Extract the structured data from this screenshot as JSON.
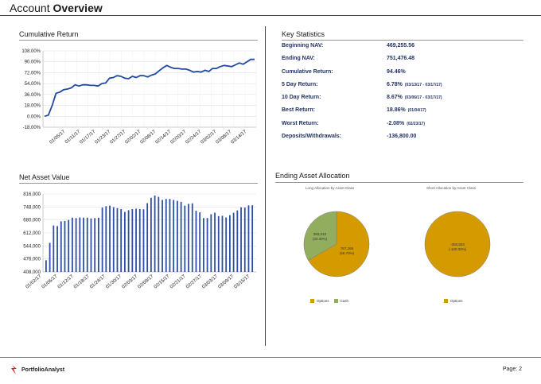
{
  "header": {
    "title_prefix": "Account ",
    "title_bold": "Overview"
  },
  "sections": {
    "cumulative_return": "Cumulative Return",
    "key_statistics": "Key Statistics",
    "net_asset_value": "Net Asset Value",
    "ending_asset_allocation": "Ending Asset Allocation"
  },
  "key_statistics": [
    {
      "label": "Beginning NAV:",
      "value": "469,255.56",
      "date": ""
    },
    {
      "label": "Ending NAV:",
      "value": "751,476.48",
      "date": ""
    },
    {
      "label": "Cumulative Return:",
      "value": "94.46%",
      "date": ""
    },
    {
      "label": "5 Day Return:",
      "value": "6.78%",
      "date": "(03/13/17 - 03/17/17)"
    },
    {
      "label": "10 Day Return:",
      "value": "8.67%",
      "date": "(03/06/17 - 03/17/17)"
    },
    {
      "label": "Best Return:",
      "value": "18.86%",
      "date": "(01/04/17)"
    },
    {
      "label": "Worst Return:",
      "value": "-2.08%",
      "date": "(02/23/17)"
    },
    {
      "label": "Deposits/Withdrawals:",
      "value": "-136,800.00",
      "date": ""
    }
  ],
  "allocation": {
    "long_title": "Long Allocation by Asset Class",
    "short_title": "Short Allocation by Asset Class",
    "long_labels": {
      "cash_value": "383,010",
      "cash_pct": "(33.30%)",
      "options_value": "767,266",
      "options_pct": "(66.70%)"
    },
    "short_labels": {
      "options_value": "-350,823",
      "options_pct": "(-100.00%)"
    },
    "legend_options": "Options",
    "legend_cash": "Cash"
  },
  "footer": {
    "brand": "PortfolioAnalyst",
    "page": "Page: 2"
  },
  "colors": {
    "line": "#1f4aa0",
    "bar": "#2c4ea3",
    "options": "#d49a00",
    "cash": "#93ad5e",
    "stat_text": "#1f2f5f"
  },
  "chart_data": [
    {
      "type": "line",
      "title": "Cumulative Return",
      "ylim": [
        -18,
        108
      ],
      "yticks": [
        "108.00%",
        "90.00%",
        "72.00%",
        "54.00%",
        "36.00%",
        "18.00%",
        "0.00%",
        "-18.00%"
      ],
      "ytick_values": [
        108,
        90,
        72,
        54,
        36,
        18,
        0,
        -18
      ],
      "xtick_labels": [
        "01/05/17",
        "01/11/17",
        "01/17/17",
        "01/23/17",
        "01/27/17",
        "02/02/17",
        "02/08/17",
        "02/14/17",
        "02/20/17",
        "02/24/17",
        "03/02/17",
        "03/08/17",
        "03/14/17"
      ],
      "values": [
        0,
        2,
        18,
        38,
        40,
        44,
        45,
        47,
        52,
        50,
        52,
        52,
        51,
        51,
        50,
        54,
        55,
        63,
        64,
        67,
        66,
        63,
        62,
        66,
        64,
        67,
        67,
        65,
        68,
        70,
        75,
        80,
        84,
        81,
        79,
        79,
        78,
        78,
        76,
        73,
        74,
        73,
        76,
        74,
        79,
        79,
        82,
        84,
        83,
        82,
        85,
        88,
        86,
        90,
        94,
        94
      ],
      "grid": true
    },
    {
      "type": "bar",
      "title": "Net Asset Value",
      "ylim": [
        408000,
        816000
      ],
      "yticks": [
        "816,000",
        "748,000",
        "680,000",
        "612,000",
        "544,000",
        "476,000",
        "408,000"
      ],
      "ytick_values": [
        816000,
        748000,
        680000,
        612000,
        544000,
        476000,
        408000
      ],
      "xtick_labels": [
        "01/02/17",
        "01/06/17",
        "01/12/17",
        "01/18/17",
        "01/24/17",
        "01/30/17",
        "02/03/17",
        "02/09/17",
        "02/15/17",
        "02/21/17",
        "02/27/17",
        "03/03/17",
        "03/09/17",
        "03/15/17"
      ],
      "values": [
        469000,
        560000,
        651000,
        648000,
        673000,
        675000,
        680000,
        692000,
        690000,
        693000,
        692000,
        692000,
        688000,
        690000,
        692000,
        745000,
        752000,
        755000,
        747000,
        742000,
        737000,
        722000,
        731000,
        737000,
        739000,
        737000,
        736000,
        768000,
        796000,
        808000,
        801000,
        785000,
        790000,
        790000,
        785000,
        780000,
        775000,
        755000,
        764000,
        767000,
        728000,
        720000,
        690000,
        690000,
        710000,
        718000,
        700000,
        702000,
        693000,
        705000,
        718000,
        730000,
        746000,
        745000,
        756000,
        757000
      ],
      "grid": true
    },
    {
      "type": "pie",
      "title": "Long Allocation by Asset Class",
      "labels": [
        "Options",
        "Cash"
      ],
      "values": [
        767266,
        383010
      ],
      "percent": [
        66.7,
        33.3
      ]
    },
    {
      "type": "pie",
      "title": "Short Allocation by Asset Class",
      "labels": [
        "Options"
      ],
      "values": [
        -350823
      ],
      "percent": [
        -100.0
      ]
    }
  ]
}
